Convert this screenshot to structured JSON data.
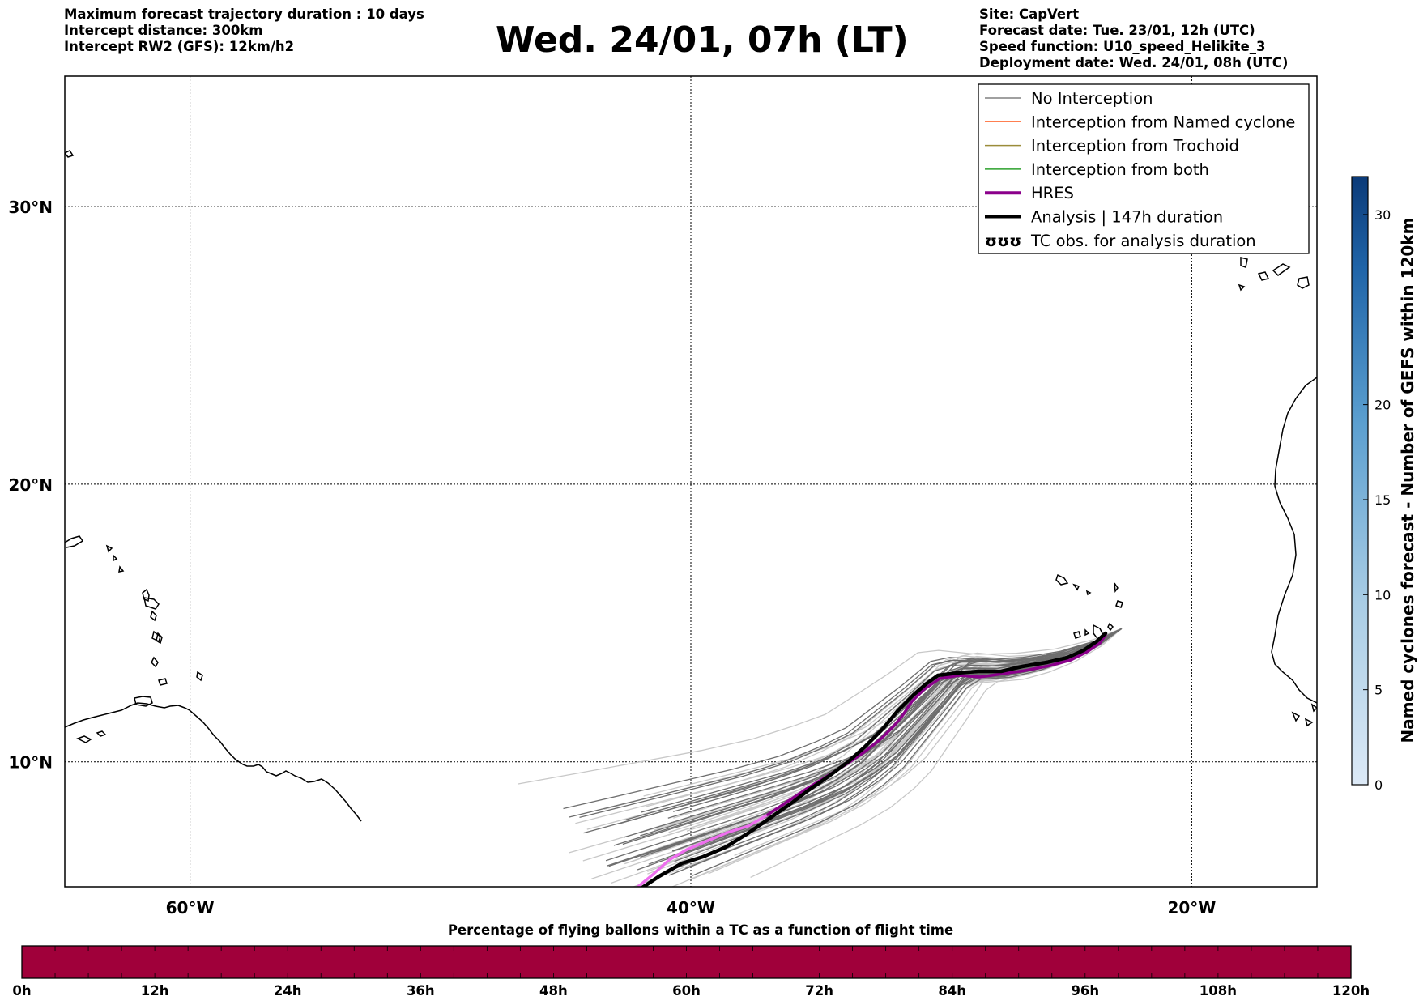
{
  "header_left": [
    "Maximum forecast trajectory duration : 10 days",
    "Intercept distance: 300km",
    "Intercept RW2 (GFS):  12km/h2"
  ],
  "title": "Wed. 24/01, 07h (LT)",
  "header_right": [
    "Site: CapVert",
    "Forecast date: Tue. 23/01, 12h (UTC)",
    "Speed function: U10_speed_Helikite_3",
    "Deployment date: Wed. 24/01, 08h (UTC)"
  ],
  "map": {
    "lon_range": [
      -65,
      -15
    ],
    "lat_range": [
      5.5,
      34.7
    ],
    "lon_ticks": [
      {
        "value": -60,
        "label": "60°W"
      },
      {
        "value": -40,
        "label": "40°W"
      },
      {
        "value": -20,
        "label": "20°W"
      }
    ],
    "lat_ticks": [
      {
        "value": 30,
        "label": "30°N"
      },
      {
        "value": 20,
        "label": "20°N"
      },
      {
        "value": 10,
        "label": "10°N"
      }
    ],
    "gridlines": true,
    "launch_site": {
      "lon": -22.8,
      "lat": 14.8
    }
  },
  "legend": {
    "placement": "top-right",
    "entries": [
      {
        "label": "No Interception",
        "color": "#808080",
        "kind": "thin"
      },
      {
        "label": "Interception from Named cyclone",
        "color": "#ff7f50",
        "kind": "thin"
      },
      {
        "label": "Interception from Trochoid",
        "color": "#9b8c3a",
        "kind": "thin"
      },
      {
        "label": "Interception from both",
        "color": "#2ca02c",
        "kind": "thin"
      },
      {
        "label": "HRES",
        "color": "#8b008b",
        "kind": "thick"
      },
      {
        "label": "Analysis | 147h duration",
        "color": "#000000",
        "kind": "thick"
      },
      {
        "label": "TC obs. for analysis duration",
        "color": "#000000",
        "kind": "glyph",
        "glyph": "ʊʊʊ"
      }
    ]
  },
  "colorbar_right": {
    "label": "Named cyclones forecast - Number of GEFS within 120km",
    "ticks": [
      0,
      5,
      10,
      15,
      20,
      30
    ],
    "range": [
      0,
      32
    ]
  },
  "colorbar_bottom": {
    "title": "Percentage of flying ballons within a TC as a function of flight time",
    "tick_labels": [
      "0h",
      "12h",
      "24h",
      "36h",
      "48h",
      "60h",
      "72h",
      "84h",
      "96h",
      "108h",
      "120h"
    ],
    "color": "#a0003a"
  }
}
